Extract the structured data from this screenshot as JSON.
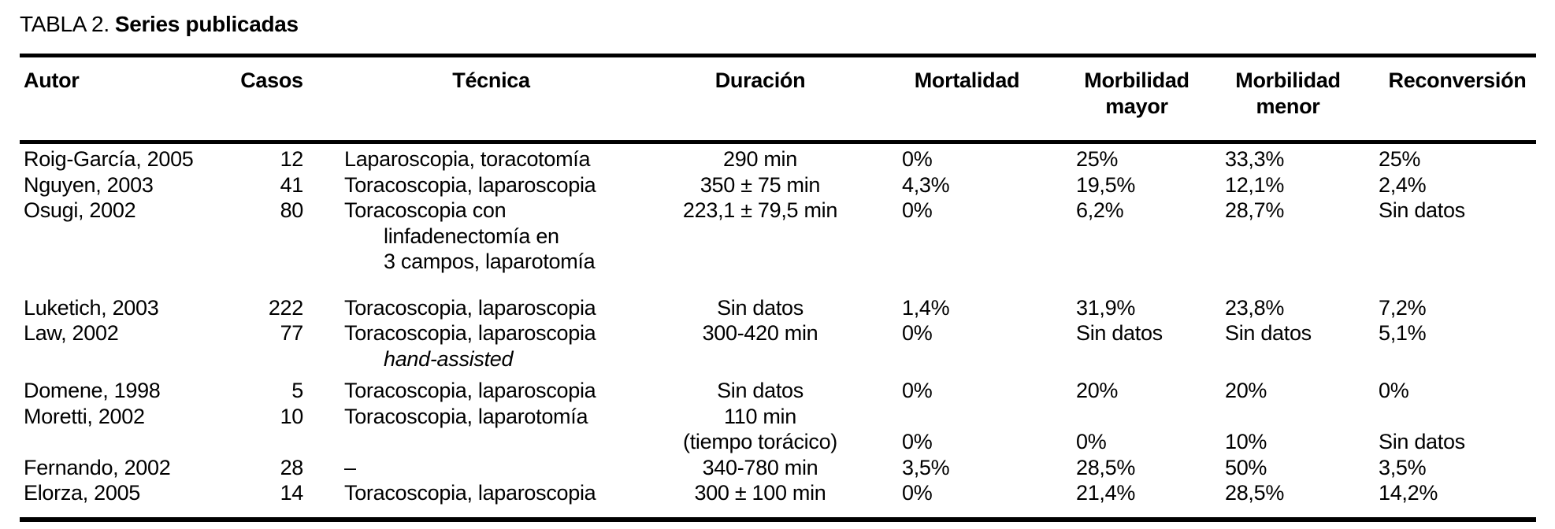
{
  "page": {
    "background_color": "#ffffff",
    "text_color": "#000000",
    "rule_color": "#000000"
  },
  "table": {
    "title_prefix": "TABLA 2.",
    "title_main": "Series publicadas",
    "headers": [
      {
        "key": "autor",
        "line1": "Autor",
        "line2": ""
      },
      {
        "key": "casos",
        "line1": "Casos",
        "line2": ""
      },
      {
        "key": "tecnica",
        "line1": "Técnica",
        "line2": ""
      },
      {
        "key": "duracion",
        "line1": "Duración",
        "line2": ""
      },
      {
        "key": "mortalidad",
        "line1": "Mortalidad",
        "line2": ""
      },
      {
        "key": "morb_mayor",
        "line1": "Morbilidad",
        "line2": "mayor"
      },
      {
        "key": "morb_menor",
        "line1": "Morbilidad",
        "line2": "menor"
      },
      {
        "key": "reconversion",
        "line1": "Reconversión",
        "line2": ""
      }
    ],
    "lines": [
      {
        "gap_before": 0,
        "tecnica_style": "",
        "cells": [
          "Roig-García, 2005",
          "12",
          "Laparoscopia, toracotomía",
          "290 min",
          "0%",
          "25%",
          "33,3%",
          "25%"
        ]
      },
      {
        "gap_before": 0,
        "tecnica_style": "",
        "cells": [
          "Nguyen, 2003",
          "41",
          "Toracoscopia, laparoscopia",
          "350 ± 75 min",
          "4,3%",
          "19,5%",
          "12,1%",
          "2,4%"
        ]
      },
      {
        "gap_before": 0,
        "tecnica_style": "",
        "cells": [
          "Osugi, 2002",
          "80",
          "Toracoscopia con",
          "223,1 ± 79,5 min",
          "0%",
          "6,2%",
          "28,7%",
          "Sin datos"
        ]
      },
      {
        "gap_before": 0,
        "tecnica_style": "indent",
        "cells": [
          "",
          "",
          "linfadenectomía en",
          "",
          "",
          "",
          "",
          ""
        ]
      },
      {
        "gap_before": 0,
        "tecnica_style": "indent",
        "cells": [
          "",
          "",
          "3 campos, laparotomía",
          "",
          "",
          "",
          "",
          ""
        ]
      },
      {
        "gap_before": 26,
        "tecnica_style": "",
        "cells": [
          "Luketich, 2003",
          "222",
          "Toracoscopia, laparoscopia",
          "Sin datos",
          "1,4%",
          "31,9%",
          "23,8%",
          "7,2%"
        ]
      },
      {
        "gap_before": 0,
        "tecnica_style": "",
        "cells": [
          "Law, 2002",
          "77",
          "Toracoscopia, laparoscopia",
          "300-420 min",
          "0%",
          "Sin datos",
          "Sin datos",
          "5,1%"
        ]
      },
      {
        "gap_before": 0,
        "tecnica_style": "indent-italic",
        "cells": [
          "",
          "",
          "hand-assisted",
          "",
          "",
          "",
          "",
          ""
        ]
      },
      {
        "gap_before": 8,
        "tecnica_style": "",
        "cells": [
          "Domene, 1998",
          "5",
          "Toracoscopia, laparoscopia",
          "Sin datos",
          "0%",
          "20%",
          "20%",
          "0%"
        ]
      },
      {
        "gap_before": 0,
        "tecnica_style": "",
        "cells": [
          "Moretti, 2002",
          "10",
          "Toracoscopia, laparotomía",
          "110 min",
          "",
          "",
          "",
          ""
        ]
      },
      {
        "gap_before": 0,
        "tecnica_style": "",
        "cells": [
          "",
          "",
          "",
          "(tiempo torácico)",
          "0%",
          "0%",
          "10%",
          "Sin datos"
        ]
      },
      {
        "gap_before": 0,
        "tecnica_style": "",
        "cells": [
          "Fernando, 2002",
          "28",
          "–",
          "340-780 min",
          "3,5%",
          "28,5%",
          "50%",
          "3,5%"
        ]
      },
      {
        "gap_before": 0,
        "tecnica_style": "",
        "cells": [
          "Elorza, 2005",
          "14",
          "Toracoscopia, laparoscopia",
          "300 ± 100 min",
          "0%",
          "21,4%",
          "28,5%",
          "14,2%"
        ]
      }
    ]
  }
}
